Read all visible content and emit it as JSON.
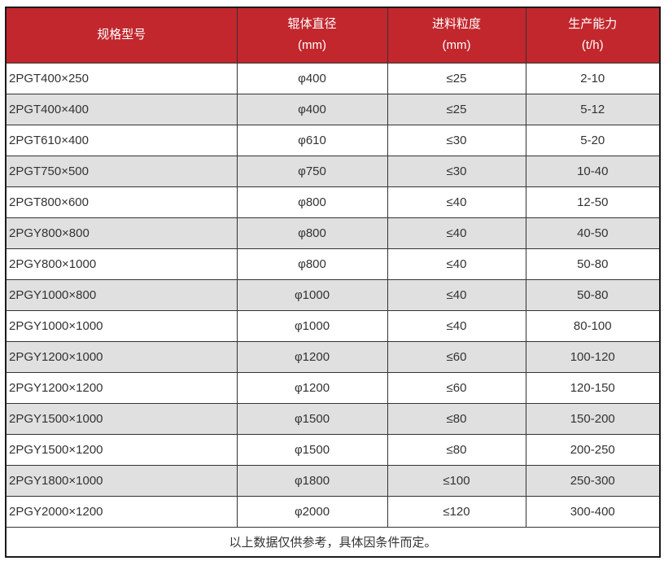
{
  "table": {
    "columns": [
      {
        "label": "规格型号",
        "unit": ""
      },
      {
        "label": "辊体直径",
        "unit": "(mm)"
      },
      {
        "label": "进料粒度",
        "unit": "(mm)"
      },
      {
        "label": "生产能力",
        "unit": "(t/h)"
      }
    ],
    "rows": [
      {
        "model": "2PGT400×250",
        "roller_diameter": "φ400",
        "feed_size": "≤25",
        "capacity": "2-10"
      },
      {
        "model": "2PGT400×400",
        "roller_diameter": "φ400",
        "feed_size": "≤25",
        "capacity": "5-12"
      },
      {
        "model": "2PGT610×400",
        "roller_diameter": "φ610",
        "feed_size": "≤30",
        "capacity": "5-20"
      },
      {
        "model": "2PGT750×500",
        "roller_diameter": "φ750",
        "feed_size": "≤30",
        "capacity": "10-40"
      },
      {
        "model": "2PGT800×600",
        "roller_diameter": "φ800",
        "feed_size": "≤40",
        "capacity": "12-50"
      },
      {
        "model": "2PGY800×800",
        "roller_diameter": "φ800",
        "feed_size": "≤40",
        "capacity": "40-50"
      },
      {
        "model": "2PGY800×1000",
        "roller_diameter": "φ800",
        "feed_size": "≤40",
        "capacity": "50-80"
      },
      {
        "model": "2PGY1000×800",
        "roller_diameter": "φ1000",
        "feed_size": "≤40",
        "capacity": "50-80"
      },
      {
        "model": "2PGY1000×1000",
        "roller_diameter": "φ1000",
        "feed_size": "≤40",
        "capacity": "80-100"
      },
      {
        "model": "2PGY1200×1000",
        "roller_diameter": "φ1200",
        "feed_size": "≤60",
        "capacity": "100-120"
      },
      {
        "model": "2PGY1200×1200",
        "roller_diameter": "φ1200",
        "feed_size": "≤60",
        "capacity": "120-150"
      },
      {
        "model": "2PGY1500×1000",
        "roller_diameter": "φ1500",
        "feed_size": "≤80",
        "capacity": "150-200"
      },
      {
        "model": "2PGY1500×1200",
        "roller_diameter": "φ1500",
        "feed_size": "≤80",
        "capacity": "200-250"
      },
      {
        "model": "2PGY1800×1000",
        "roller_diameter": "φ1800",
        "feed_size": "≤100",
        "capacity": "250-300"
      },
      {
        "model": "2PGY2000×1200",
        "roller_diameter": "φ2000",
        "feed_size": "≤120",
        "capacity": "300-400"
      }
    ],
    "footer_note": "以上数据仅供参考，具体因条件而定。"
  },
  "colors": {
    "header_bg": "#c1272d",
    "header_text": "#ffffff",
    "row_alt_bg": "#e0e0e0",
    "body_text": "#333333",
    "border": "#333333"
  }
}
